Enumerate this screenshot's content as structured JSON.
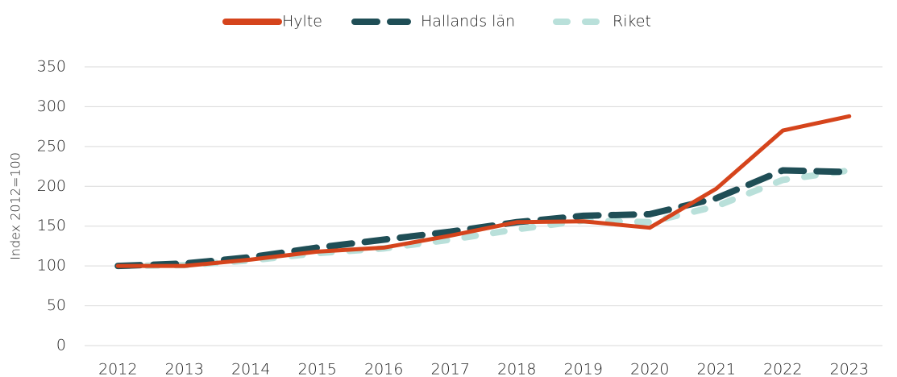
{
  "chart_data": {
    "type": "line",
    "ylabel": "Index 2012=100",
    "categories": [
      "2012",
      "2013",
      "2014",
      "2015",
      "2016",
      "2017",
      "2018",
      "2019",
      "2020",
      "2021",
      "2022",
      "2023"
    ],
    "series": [
      {
        "name": "Hylte",
        "color": "#d5441c",
        "style": "solid",
        "values": [
          100,
          100,
          108,
          118,
          123,
          138,
          155,
          156,
          148,
          197,
          270,
          288
        ]
      },
      {
        "name": "Hallands län",
        "color": "#1f4e56",
        "style": "dashed",
        "values": [
          100,
          103,
          111,
          123,
          133,
          143,
          155,
          163,
          165,
          185,
          220,
          218
        ]
      },
      {
        "name": "Riket",
        "color": "#b9e0da",
        "style": "dashed",
        "values": [
          100,
          101,
          107,
          116,
          122,
          133,
          146,
          157,
          155,
          175,
          208,
          220
        ]
      }
    ],
    "ylim": [
      0,
      350
    ],
    "yticks": [
      0,
      50,
      100,
      150,
      200,
      250,
      300,
      350
    ],
    "grid": true,
    "legend": "top"
  }
}
